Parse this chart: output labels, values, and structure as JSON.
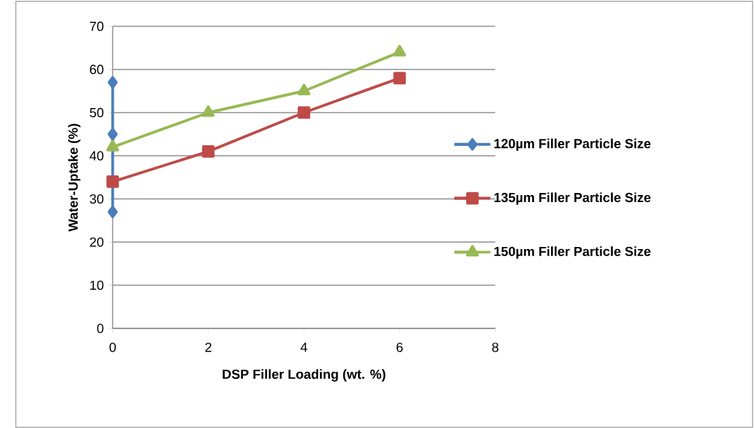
{
  "chart_data": {
    "type": "line",
    "xlabel": "DSP Filler Loading (wt. %)",
    "ylabel": "Water-Uptake (%)",
    "xlim": [
      0,
      8
    ],
    "xticks": [
      0,
      2,
      4,
      6,
      8
    ],
    "ylim": [
      0,
      70
    ],
    "yticks": [
      0,
      10,
      20,
      30,
      40,
      50,
      60,
      70
    ],
    "grid": "y",
    "legend": "right",
    "line_style": "solid",
    "series": [
      {
        "name": "120µm Filler Particle Size",
        "color": "#4a7ebb",
        "marker": "diamond",
        "x": [
          0,
          0,
          0
        ],
        "values": [
          27,
          45,
          57
        ]
      },
      {
        "name": "135µm Filler Particle Size",
        "color": "#be4b48",
        "marker": "square",
        "x": [
          0,
          2,
          4,
          6
        ],
        "values": [
          34,
          41,
          50,
          58
        ]
      },
      {
        "name": "150µm Filler Particle Size",
        "color": "#98b954",
        "marker": "triangle",
        "x": [
          0,
          2,
          4,
          6
        ],
        "values": [
          42,
          50,
          55,
          64
        ]
      }
    ]
  }
}
